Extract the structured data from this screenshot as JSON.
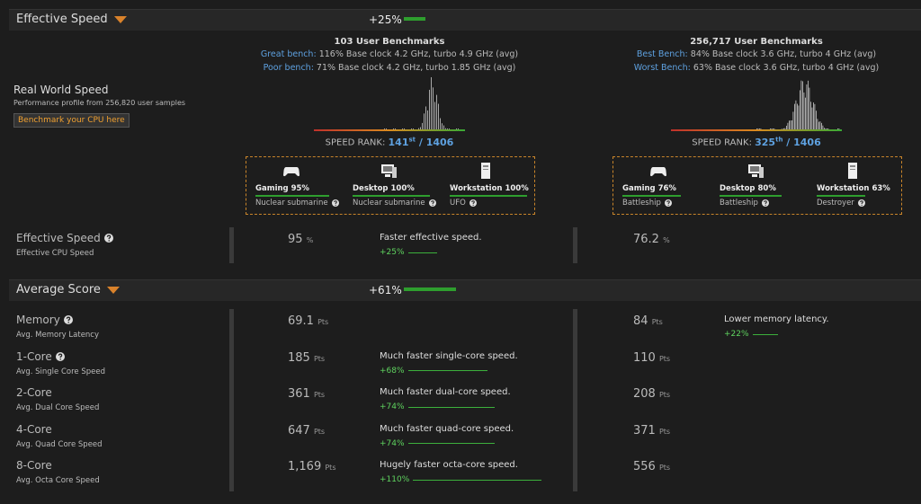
{
  "sections": [
    {
      "title": "Effective Speed",
      "delta": {
        "value": 25,
        "label": "+25%"
      },
      "rows": [
        {
          "title": "Effective Speed",
          "subtitle": "Effective CPU Speed",
          "values": [
            {
              "score": "95",
              "unit": "%",
              "comparison": {
                "text": "Faster effective speed.",
                "delta": {
                  "value": 25,
                  "label": "+25%"
                }
              }
            },
            {
              "score": "76.2",
              "unit": "%"
            }
          ]
        }
      ]
    },
    {
      "title": "Average Score",
      "delta": {
        "value": 61,
        "label": "+61%"
      },
      "rows": [
        {
          "title": "Memory",
          "subtitle": "Avg. Memory Latency",
          "values": [
            {
              "score": "69.1",
              "unit": "Pts"
            },
            {
              "score": "84",
              "unit": "Pts",
              "comparison": {
                "text": "Lower memory latency.",
                "delta": {
                  "value": 22,
                  "label": "+22%"
                }
              }
            }
          ]
        },
        {
          "title": "1-Core",
          "subtitle": "Avg. Single Core Speed",
          "values": [
            {
              "score": "185",
              "unit": "Pts",
              "comparison": {
                "text": "Much faster single-core speed.",
                "delta": {
                  "value": 68,
                  "label": "+68%"
                }
              }
            },
            {
              "score": "110",
              "unit": "Pts"
            }
          ]
        },
        {
          "title": "2-Core",
          "subtitle": "Avg. Dual Core Speed",
          "values": [
            {
              "score": "361",
              "unit": "Pts",
              "comparison": {
                "text": "Much faster dual-core speed.",
                "delta": {
                  "value": 74,
                  "label": "+74%"
                }
              }
            },
            {
              "score": "208",
              "unit": "Pts"
            }
          ]
        },
        {
          "title": "4-Core",
          "subtitle": "Avg. Quad Core Speed",
          "values": [
            {
              "score": "647",
              "unit": "Pts",
              "comparison": {
                "text": "Much faster quad-core speed.",
                "delta": {
                  "value": 74,
                  "label": "+74%"
                }
              }
            },
            {
              "score": "371",
              "unit": "Pts"
            }
          ]
        },
        {
          "title": "8-Core",
          "subtitle": "Avg. Octa Core Speed",
          "values": [
            {
              "score": "1,169",
              "unit": "Pts",
              "comparison": {
                "text": "Hugely faster octa-core speed.",
                "delta": {
                  "value": 110,
                  "label": "+110%"
                }
              }
            },
            {
              "score": "556",
              "unit": "Pts"
            }
          ]
        }
      ]
    }
  ],
  "real_world": {
    "title": "Real World Speed",
    "subtitle": "Performance profile from 256,820 user samples",
    "button": "Benchmark your CPU here"
  },
  "cpus": [
    {
      "benchmarks": "103 User Benchmarks",
      "high_label": "Great bench:",
      "high": "116% Base clock 4.2 GHz, turbo 4.9 GHz (avg)",
      "low_label": "Poor bench:",
      "low": "71% Base clock 4.2 GHz, turbo 1.85 GHz (avg)",
      "rank_label": "SPEED RANK:",
      "rank": "141",
      "rank_suffix": "st",
      "rank_total": "/ 1406",
      "scores": [
        {
          "name": "Gaming",
          "pct": {
            "value": 95,
            "label": "95%"
          },
          "class": "Nuclear submarine"
        },
        {
          "name": "Desktop",
          "pct": {
            "value": 100,
            "label": "100%"
          },
          "class": "Nuclear submarine"
        },
        {
          "name": "Workstation",
          "pct": {
            "value": 100,
            "label": "100%"
          },
          "class": "UFO"
        }
      ]
    },
    {
      "benchmarks": "256,717 User Benchmarks",
      "high_label": "Best Bench:",
      "high": "84% Base clock 3.6 GHz, turbo 4 GHz (avg)",
      "low_label": "Worst Bench:",
      "low": "63% Base clock 3.6 GHz, turbo 4 GHz (avg)",
      "rank_label": "SPEED RANK:",
      "rank": "325",
      "rank_suffix": "th",
      "rank_total": "/ 1406",
      "scores": [
        {
          "name": "Gaming",
          "pct": {
            "value": 76,
            "label": "76%"
          },
          "class": "Battleship"
        },
        {
          "name": "Desktop",
          "pct": {
            "value": 80,
            "label": "80%"
          },
          "class": "Battleship"
        },
        {
          "name": "Workstation",
          "pct": {
            "value": 63,
            "label": "63%"
          },
          "class": "Destroyer"
        }
      ]
    }
  ]
}
